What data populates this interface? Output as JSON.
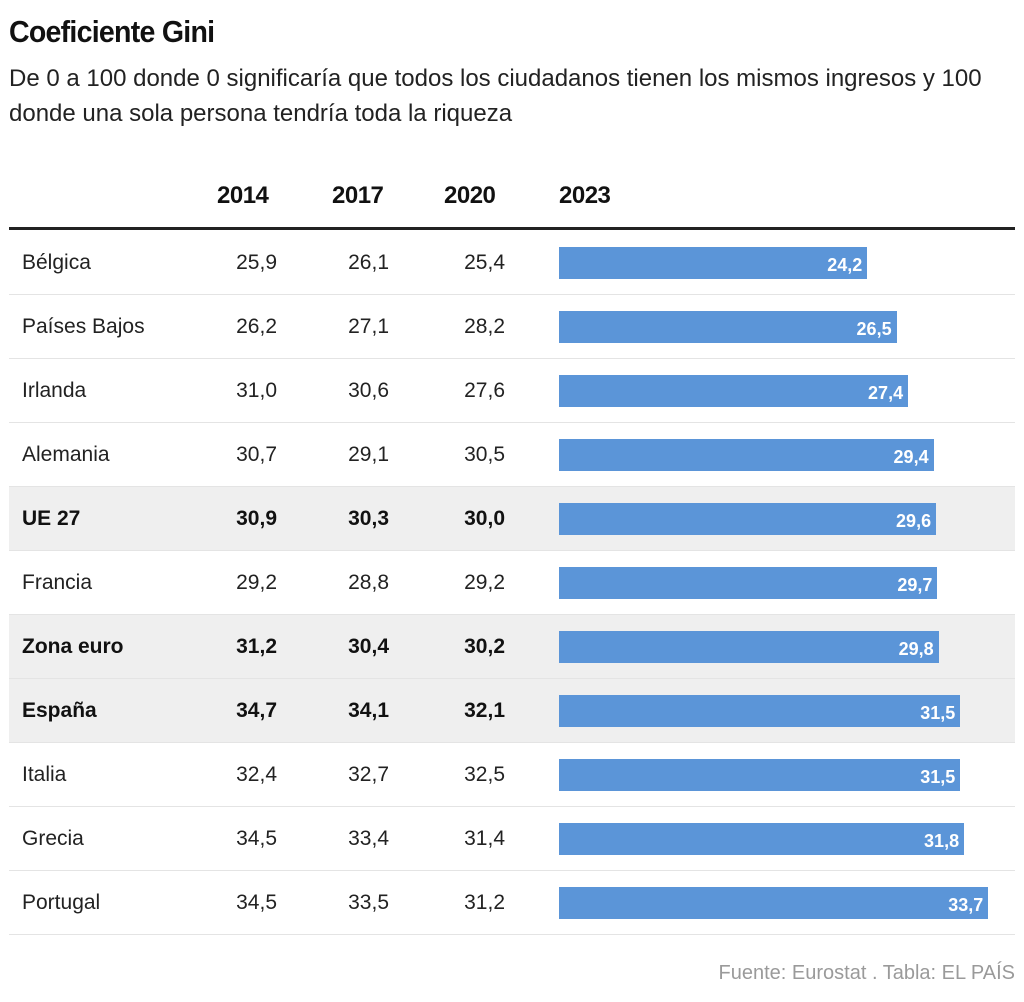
{
  "title": "Coeficiente Gini",
  "subtitle": "De 0 a 100 donde 0 significaría que todos los ciudadanos tienen los mismos ingresos y 100 donde una sola persona tendría toda la riqueza",
  "source": "Fuente: Eurostat . Tabla: EL PAÍS",
  "colors": {
    "bar": "#5b95d8",
    "highlight_row": "#efefef"
  },
  "chart_data": {
    "type": "table",
    "columns": [
      "2014",
      "2017",
      "2020",
      "2023"
    ],
    "bar_column": "2023",
    "rows": [
      {
        "name": "Bélgica",
        "values": [
          "25,9",
          "26,1",
          "25,4",
          "24,2"
        ],
        "bar": 24.2,
        "highlight": false
      },
      {
        "name": "Países Bajos",
        "values": [
          "26,2",
          "27,1",
          "28,2",
          "26,5"
        ],
        "bar": 26.5,
        "highlight": false
      },
      {
        "name": "Irlanda",
        "values": [
          "31,0",
          "30,6",
          "27,6",
          "27,4"
        ],
        "bar": 27.4,
        "highlight": false
      },
      {
        "name": "Alemania",
        "values": [
          "30,7",
          "29,1",
          "30,5",
          "29,4"
        ],
        "bar": 29.4,
        "highlight": false
      },
      {
        "name": "UE 27",
        "values": [
          "30,9",
          "30,3",
          "30,0",
          "29,6"
        ],
        "bar": 29.6,
        "highlight": true
      },
      {
        "name": "Francia",
        "values": [
          "29,2",
          "28,8",
          "29,2",
          "29,7"
        ],
        "bar": 29.7,
        "highlight": false
      },
      {
        "name": "Zona euro",
        "values": [
          "31,2",
          "30,4",
          "30,2",
          "29,8"
        ],
        "bar": 29.8,
        "highlight": true
      },
      {
        "name": "España",
        "values": [
          "34,7",
          "34,1",
          "32,1",
          "31,5"
        ],
        "bar": 31.5,
        "highlight": true
      },
      {
        "name": "Italia",
        "values": [
          "32,4",
          "32,7",
          "32,5",
          "31,5"
        ],
        "bar": 31.5,
        "highlight": false
      },
      {
        "name": "Grecia",
        "values": [
          "34,5",
          "33,4",
          "31,4",
          "31,8"
        ],
        "bar": 31.8,
        "highlight": false
      },
      {
        "name": "Portugal",
        "values": [
          "34,5",
          "33,5",
          "31,2",
          "33,7"
        ],
        "bar": 33.7,
        "highlight": false
      }
    ]
  }
}
